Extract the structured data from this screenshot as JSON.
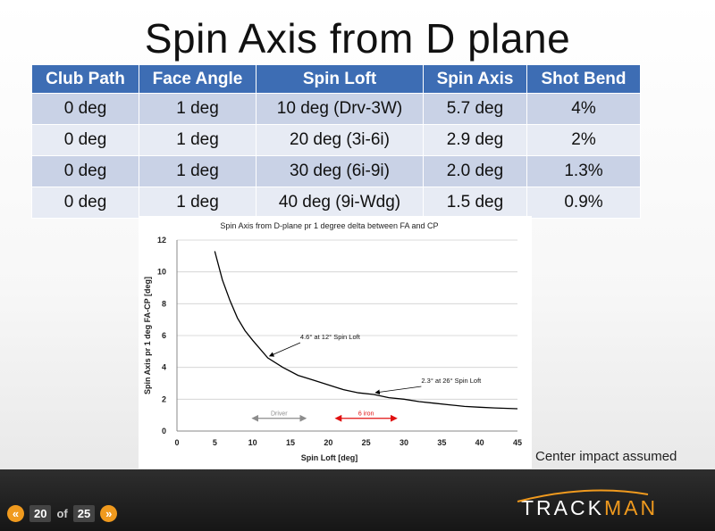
{
  "title": "Spin Axis from D plane",
  "table": {
    "headers": [
      "Club Path",
      "Face Angle",
      "Spin Loft",
      "Spin Axis",
      "Shot Bend"
    ],
    "rows": [
      [
        "0 deg",
        "1 deg",
        "10 deg (Drv-3W)",
        "5.7 deg",
        "4%"
      ],
      [
        "0 deg",
        "1 deg",
        "20 deg (3i-6i)",
        "2.9 deg",
        "2%"
      ],
      [
        "0 deg",
        "1 deg",
        "30 deg (6i-9i)",
        "2.0 deg",
        "1.3%"
      ],
      [
        "0 deg",
        "1 deg",
        "40 deg (9i-Wdg)",
        "1.5 deg",
        "0.9%"
      ]
    ]
  },
  "chart_data": {
    "type": "line",
    "title": "Spin Axis from D-plane pr 1 degree delta between FA and CP",
    "xlabel": "Spin Loft [deg]",
    "ylabel": "Spin Axis pr 1 deg FA-CP [deg]",
    "xlim": [
      0,
      45
    ],
    "ylim": [
      0,
      12
    ],
    "xticks": [
      0,
      5,
      10,
      15,
      20,
      25,
      30,
      35,
      40,
      45
    ],
    "yticks": [
      0,
      2,
      4,
      6,
      8,
      10,
      12
    ],
    "grid": "horizontal",
    "series": [
      {
        "x": [
          5,
          6,
          7,
          8,
          9,
          10,
          12,
          14,
          16,
          18,
          20,
          22,
          24,
          26,
          28,
          30,
          32,
          34,
          36,
          38,
          40,
          42,
          45
        ],
        "y": [
          11.3,
          9.5,
          8.2,
          7.1,
          6.3,
          5.7,
          4.6,
          4.0,
          3.5,
          3.2,
          2.9,
          2.6,
          2.4,
          2.3,
          2.1,
          2.0,
          1.85,
          1.75,
          1.65,
          1.55,
          1.5,
          1.45,
          1.4
        ],
        "color": "#000000"
      }
    ],
    "annotations": [
      {
        "text": "4.6° at 12° Spin Loft",
        "x": 12,
        "y": 4.6
      },
      {
        "text": "2.3° at 26° Spin Loft",
        "x": 26,
        "y": 2.3
      }
    ],
    "ranges": [
      {
        "label": "Driver",
        "from": 10,
        "to": 17,
        "color": "#8c8c8c"
      },
      {
        "label": "6 iron",
        "from": 21,
        "to": 29,
        "color": "#e01010"
      }
    ]
  },
  "note": "Center impact assumed",
  "footer": {
    "current_page": "20",
    "of_label": "of",
    "total_pages": "25",
    "prev_icon": "«",
    "next_icon": "»",
    "logo_part1": "TRACK",
    "logo_part2": "MAN",
    "accent_color": "#f09a1e"
  }
}
